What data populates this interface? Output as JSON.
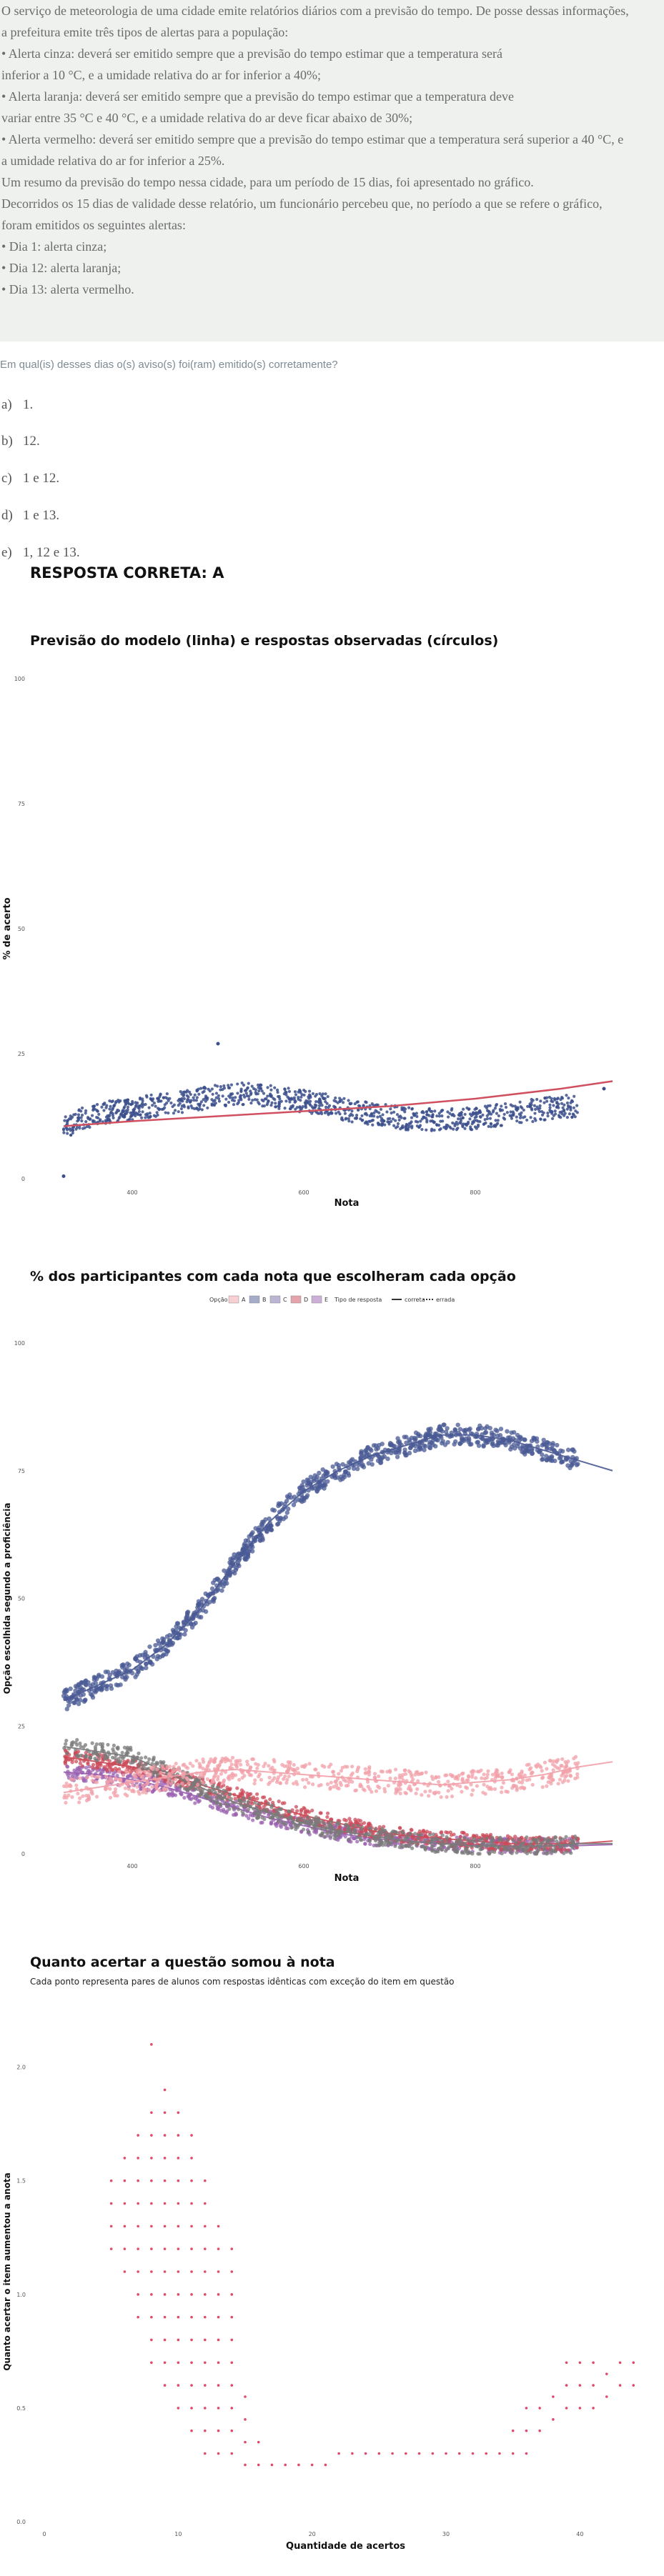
{
  "statement": [
    "O serviço de meteorologia de uma cidade emite relatórios diários com a previsão do tempo. De posse dessas informações,",
    "a prefeitura emite três tipos de alertas para a população:",
    "• Alerta cinza: deverá ser emitido sempre que a previsão do tempo estimar que a temperatura será",
    "inferior a 10 °C, e a umidade relativa do ar for inferior a 40%;",
    "• Alerta laranja: deverá ser emitido sempre que a previsão do tempo estimar que a temperatura deve",
    "variar entre 35 °C e 40 °C, e a umidade relativa do ar deve ficar abaixo de 30%;",
    "• Alerta vermelho: deverá ser emitido sempre que a previsão do tempo estimar que a temperatura será superior a 40 °C, e",
    "a umidade relativa do ar for inferior a 25%.",
    "Um resumo da previsão do tempo nessa cidade, para um período de 15 dias, foi apresentado no gráfico.",
    "Decorridos os 15 dias de validade desse relatório, um funcionário percebeu que, no período a que se refere o gráfico,",
    "foram emitidos os seguintes alertas:",
    "• Dia 1: alerta cinza;",
    "• Dia 12: alerta laranja;",
    "• Dia 13: alerta vermelho."
  ],
  "question": "Em qual(is) desses dias o(s) aviso(s) foi(ram) emitido(s) corretamente?",
  "options": [
    {
      "letter": "a)",
      "text": "1."
    },
    {
      "letter": "b)",
      "text": "12."
    },
    {
      "letter": "c)",
      "text": "1 e 12."
    },
    {
      "letter": "d)",
      "text": "1 e 13."
    },
    {
      "letter": "e)",
      "text": "1, 12 e 13."
    }
  ],
  "answer": "RESPOSTA CORRETA: A",
  "colors": {
    "points_blue": "#3b4f8c",
    "model_line": "#d0505f",
    "opt_A": "#f2a0a8",
    "opt_B": "#4a5a94",
    "opt_C": "#7a6aa8",
    "opt_D": "#cc4a58",
    "opt_E": "#9a60b0",
    "opt_gray": "#7a7a7a",
    "scatter_pink": "#e04a6a"
  },
  "chart_data": [
    {
      "type": "scatter",
      "title": "Previsão do modelo (linha) e respostas observadas (círculos)",
      "xlabel": "Nota",
      "ylabel": "% de acerto",
      "xlim": [
        300,
        1000
      ],
      "ylim": [
        0,
        100
      ],
      "xticks": [
        "400",
        "600",
        "800"
      ],
      "yticks": [
        "0",
        "25",
        "50",
        "75",
        "100"
      ],
      "series": [
        {
          "kind": "points",
          "x": [
            320,
            340,
            360,
            380,
            400,
            420,
            440,
            460,
            480,
            500,
            520,
            540,
            560,
            580,
            600,
            620,
            640,
            660,
            680,
            700,
            720,
            740,
            760,
            780,
            800,
            820,
            840,
            860,
            880,
            900
          ],
          "y": [
            10,
            12,
            13,
            13.5,
            14,
            14.5,
            15,
            15.5,
            16,
            16.5,
            17,
            17,
            16.5,
            16,
            15.5,
            15,
            14,
            13.5,
            13,
            12.5,
            12,
            12,
            11.5,
            12,
            12,
            12.5,
            13,
            13.5,
            14,
            14.5
          ]
        },
        {
          "kind": "line",
          "x": [
            320,
            400,
            500,
            600,
            700,
            800,
            900,
            960
          ],
          "y": [
            10.5,
            11.5,
            12.5,
            13.5,
            14.5,
            16,
            18,
            19.5
          ]
        }
      ],
      "outliers": [
        {
          "x": 320,
          "y": 0.5
        },
        {
          "x": 500,
          "y": 27
        },
        {
          "x": 950,
          "y": 18
        }
      ]
    },
    {
      "type": "scatter",
      "title": "% dos participantes com cada nota que escolheram cada opção",
      "xlabel": "Nota",
      "ylabel": "Opção escolhida segundo a proficiência",
      "xlim": [
        300,
        1000
      ],
      "ylim": [
        0,
        100
      ],
      "xticks": [
        "400",
        "600",
        "800"
      ],
      "yticks": [
        "0",
        "25",
        "50",
        "75",
        "100"
      ],
      "legend_title_opt": "Opção",
      "legend_opts": [
        "A",
        "B",
        "C",
        "D",
        "E"
      ],
      "legend_title_type": "Tipo de resposta",
      "legend_types": [
        "correta",
        "errada"
      ],
      "legend_position": "top",
      "series": [
        {
          "name": "B",
          "x": [
            320,
            360,
            400,
            440,
            480,
            520,
            560,
            600,
            640,
            680,
            720,
            760,
            800,
            840,
            880,
            920,
            960
          ],
          "y": [
            30,
            33,
            36,
            41,
            48,
            57,
            65,
            71,
            75,
            78,
            80,
            82,
            82,
            81,
            79,
            77,
            75
          ]
        },
        {
          "name": "A",
          "x": [
            320,
            360,
            400,
            440,
            480,
            520,
            560,
            600,
            640,
            680,
            720,
            760,
            800,
            840,
            880,
            920,
            960
          ],
          "y": [
            12,
            13,
            14,
            15,
            16,
            16.5,
            16,
            15.5,
            15,
            14.5,
            14,
            13.5,
            14,
            14.5,
            15.5,
            17,
            18
          ]
        },
        {
          "name": "gray",
          "x": [
            320,
            360,
            400,
            440,
            480,
            520,
            560,
            600,
            640,
            680,
            720,
            760,
            800,
            840,
            880,
            920,
            960
          ],
          "y": [
            21,
            20,
            19,
            16,
            13,
            10,
            8,
            6,
            4.5,
            3.5,
            2.5,
            2,
            1.5,
            1.5,
            1.5,
            2,
            2
          ]
        },
        {
          "name": "D",
          "x": [
            320,
            360,
            400,
            440,
            480,
            520,
            560,
            600,
            640,
            680,
            720,
            760,
            800,
            840,
            880,
            920,
            960
          ],
          "y": [
            19,
            18,
            17,
            15.5,
            13.5,
            11.5,
            9.5,
            7.5,
            6,
            4.5,
            3.5,
            3,
            2.5,
            2,
            2,
            2,
            2.5
          ]
        },
        {
          "name": "E",
          "x": [
            320,
            360,
            400,
            440,
            480,
            520,
            560,
            600,
            640,
            680,
            720,
            760,
            800,
            840,
            880,
            920,
            960
          ],
          "y": [
            16,
            15.5,
            14.5,
            13,
            11,
            9,
            7,
            5.5,
            4,
            3,
            2.5,
            2,
            1.8,
            1.5,
            1.5,
            1.6,
            1.8
          ]
        }
      ]
    },
    {
      "type": "scatter",
      "title": "Quanto acertar a questão somou à nota",
      "subtitle": "Cada ponto representa pares de alunos com respostas idênticas com exceção do item em questão",
      "xlabel": "Quantidade de acertos",
      "ylabel": "Quanto acertar o item aumentou a anota",
      "xlim": [
        0,
        45
      ],
      "ylim": [
        0,
        2.2
      ],
      "xticks": [
        "0",
        "10",
        "20",
        "30",
        "40"
      ],
      "yticks": [
        "0.0",
        "0.5",
        "1.0",
        "1.5",
        "2.0"
      ],
      "x": [
        5,
        6,
        7,
        8,
        9,
        10,
        11,
        12,
        13,
        14,
        15,
        16,
        17,
        18,
        19,
        20,
        21,
        22,
        23,
        24,
        25,
        26,
        27,
        28,
        29,
        30,
        31,
        32,
        33,
        34,
        35,
        36,
        37,
        38,
        39,
        40,
        41,
        42,
        43,
        44
      ],
      "y_max": [
        1.55,
        1.65,
        1.75,
        1.85,
        1.95,
        1.8,
        1.7,
        1.5,
        1.35,
        1.2,
        0.6,
        0.35,
        0.25,
        0.25,
        0.25,
        0.25,
        0.25,
        0.3,
        0.3,
        0.3,
        0.3,
        0.3,
        0.3,
        0.3,
        0.3,
        0.3,
        0.3,
        0.35,
        0.35,
        0.35,
        0.45,
        0.5,
        0.55,
        0.6,
        0.7,
        0.7,
        0.7,
        0.7,
        0.7,
        0.7
      ],
      "y_min": [
        1.2,
        1.1,
        0.9,
        0.7,
        0.6,
        0.5,
        0.4,
        0.3,
        0.3,
        0.3,
        0.25,
        0.25,
        0.25,
        0.25,
        0.25,
        0.25,
        0.25,
        0.3,
        0.3,
        0.3,
        0.3,
        0.3,
        0.3,
        0.3,
        0.3,
        0.3,
        0.3,
        0.3,
        0.3,
        0.3,
        0.3,
        0.3,
        0.4,
        0.45,
        0.5,
        0.5,
        0.5,
        0.55,
        0.6,
        0.6
      ]
    }
  ]
}
